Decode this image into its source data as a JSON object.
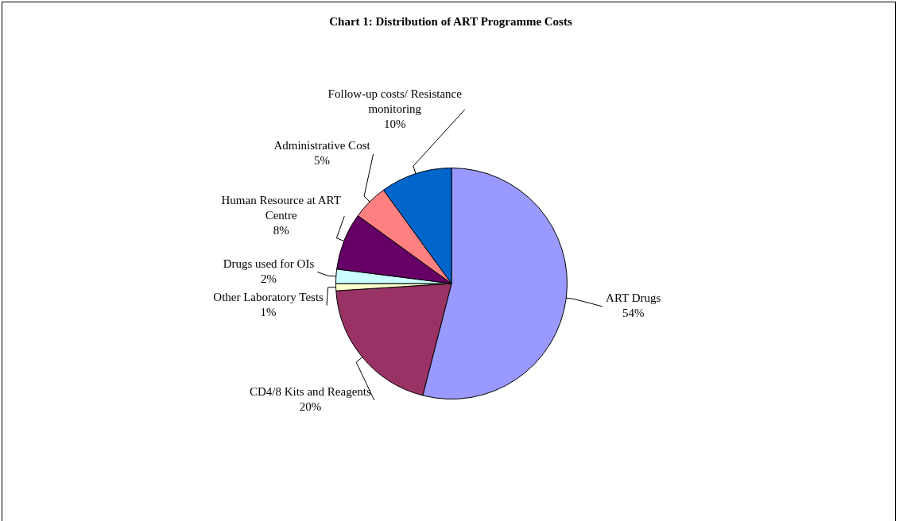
{
  "chart_data": {
    "type": "pie",
    "title": "Chart 1: Distribution of ART Programme Costs",
    "categories": [
      "ART Drugs",
      "CD4/8 Kits and Reagents",
      "Other Laboratory Tests",
      "Drugs used for OIs",
      "Human Resource at ART Centre",
      "Administrative Cost",
      "Follow-up costs/ Resistance monitoring"
    ],
    "values": [
      54,
      20,
      1,
      2,
      8,
      5,
      10
    ],
    "value_labels": [
      "54%",
      "20%",
      "1%",
      "2%",
      "8%",
      "5%",
      "10%"
    ],
    "colors": [
      "#9999ff",
      "#993366",
      "#ffffcc",
      "#ccffff",
      "#660066",
      "#ff8080",
      "#0066cc"
    ],
    "legend": false
  }
}
